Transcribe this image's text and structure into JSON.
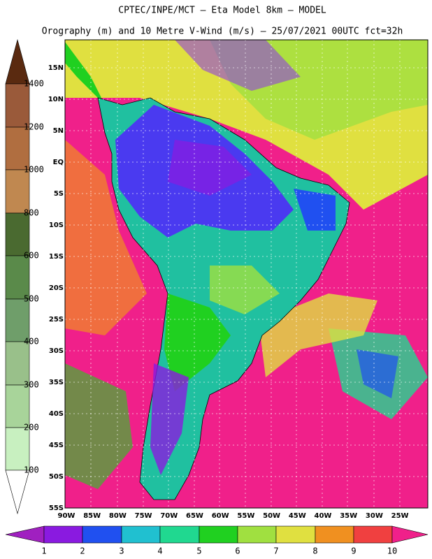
{
  "header": {
    "title": "CPTEC/INPE/MCT –  Eta Model 8km – MODEL",
    "subtitle": "Orography (m) and 10 Metre V-Wind (m/s) – 25/07/2021 00UTC fct=32h"
  },
  "map": {
    "lat_labels": [
      "15N",
      "10N",
      "5N",
      "EQ",
      "5S",
      "10S",
      "15S",
      "20S",
      "25S",
      "30S",
      "35S",
      "40S",
      "45S",
      "50S",
      "55S"
    ],
    "lon_labels": [
      "90W",
      "85W",
      "80W",
      "75W",
      "70W",
      "65W",
      "60W",
      "55W",
      "50W",
      "45W",
      "40W",
      "35W",
      "30W",
      "25W"
    ]
  },
  "elevation_scale": {
    "labels": [
      1400,
      1200,
      1000,
      800,
      600,
      500,
      400,
      300,
      200,
      100
    ]
  },
  "wind_scale": {
    "labels": [
      1,
      2,
      3,
      4,
      5,
      6,
      7,
      8,
      9,
      10
    ]
  }
}
